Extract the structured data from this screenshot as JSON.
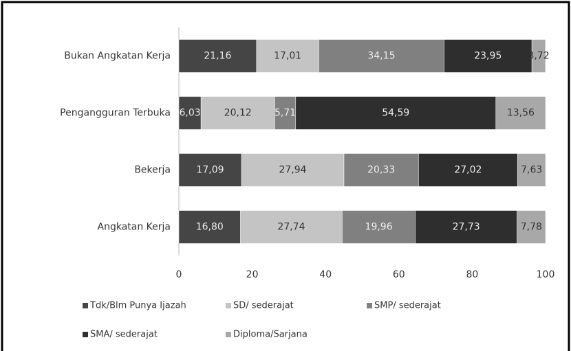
{
  "chart_data": {
    "type": "stacked-barh",
    "categories": [
      "Bukan Angkatan Kerja",
      "Pengangguran Terbuka",
      "Bekerja",
      "Angkatan Kerja"
    ],
    "series": [
      {
        "name": "Tdk/Blm Punya Ijazah",
        "color": "#454545",
        "values": [
          21.16,
          6.03,
          17.09,
          16.8
        ],
        "value_labels": [
          "21,16",
          "6,03",
          "17,09",
          "16,80"
        ]
      },
      {
        "name": "SD/ sederajat",
        "color": "#c4c4c4",
        "values": [
          17.01,
          20.12,
          27.94,
          27.74
        ],
        "value_labels": [
          "17,01",
          "20,12",
          "27,94",
          "27,74"
        ]
      },
      {
        "name": "SMP/ sederajat",
        "color": "#808080",
        "values": [
          34.15,
          5.71,
          20.33,
          19.96
        ],
        "value_labels": [
          "34,15",
          "5,71",
          "20,33",
          "19,96"
        ]
      },
      {
        "name": "SMA/ sederajat",
        "color": "#2e2e2e",
        "values": [
          23.95,
          54.59,
          27.02,
          27.73
        ],
        "value_labels": [
          "23,95",
          "54,59",
          "27,02",
          "27,73"
        ]
      },
      {
        "name": "Diploma/Sarjana",
        "color": "#a8a8a8",
        "values": [
          3.72,
          13.56,
          7.63,
          7.78
        ],
        "value_labels": [
          "3,72",
          "13,56",
          "7,63",
          "7,78"
        ]
      }
    ],
    "xlim": [
      0,
      100
    ],
    "xticks": [
      0,
      20,
      40,
      60,
      80,
      100
    ],
    "grid": false,
    "legend": "bottom"
  }
}
